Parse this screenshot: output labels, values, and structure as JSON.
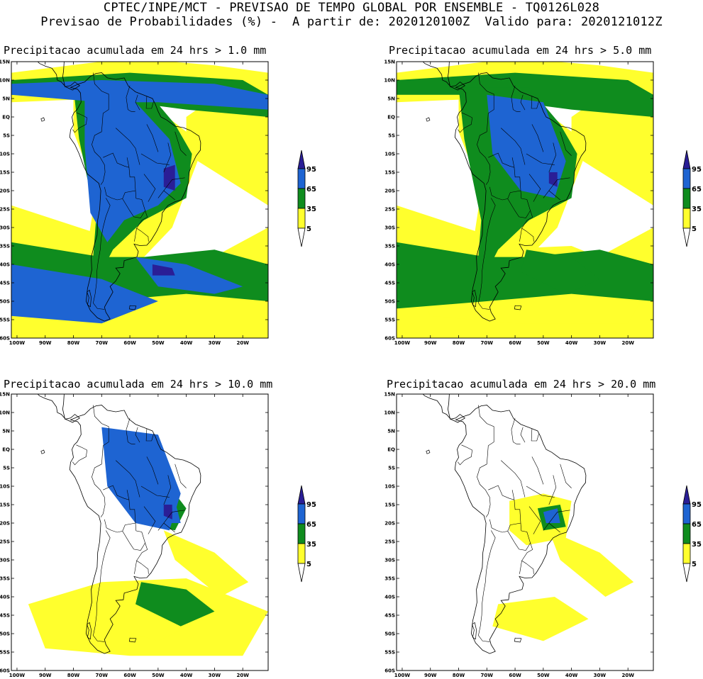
{
  "header": {
    "line1": "CPTEC/INPE/MCT - PREVISAO DE TEMPO GLOBAL POR ENSEMBLE - TQ0126L028",
    "line2": "Previsao de Probabilidades (%) -  A partir de: 2020120100Z  Valido para: 2020121012Z"
  },
  "axes": {
    "lat_labels": [
      "15N",
      "10N",
      "5N",
      "EQ",
      "5S",
      "10S",
      "15S",
      "20S",
      "25S",
      "30S",
      "35S",
      "40S",
      "45S",
      "50S",
      "55S",
      "60S"
    ],
    "lon_labels": [
      "100W",
      "90W",
      "80W",
      "70W",
      "60W",
      "50W",
      "40W",
      "30W",
      "20W"
    ]
  },
  "legend": {
    "labels": [
      "95",
      "65",
      "35",
      "5"
    ],
    "colors": {
      "p95": "#2a1e96",
      "p65": "#1e64d2",
      "p35": "#0f8c1e",
      "p5": "#ffff2d"
    }
  },
  "panels": [
    {
      "title": "Precipitacao acumulada em 24 hrs > 1.0 mm",
      "level": 1
    },
    {
      "title": "Precipitacao acumulada em 24 hrs > 5.0 mm",
      "level": 2
    },
    {
      "title": "Precipitacao acumulada em 24 hrs > 10.0 mm",
      "level": 3
    },
    {
      "title": "Precipitacao acumulada em 24 hrs > 20.0 mm",
      "level": 4
    }
  ]
}
